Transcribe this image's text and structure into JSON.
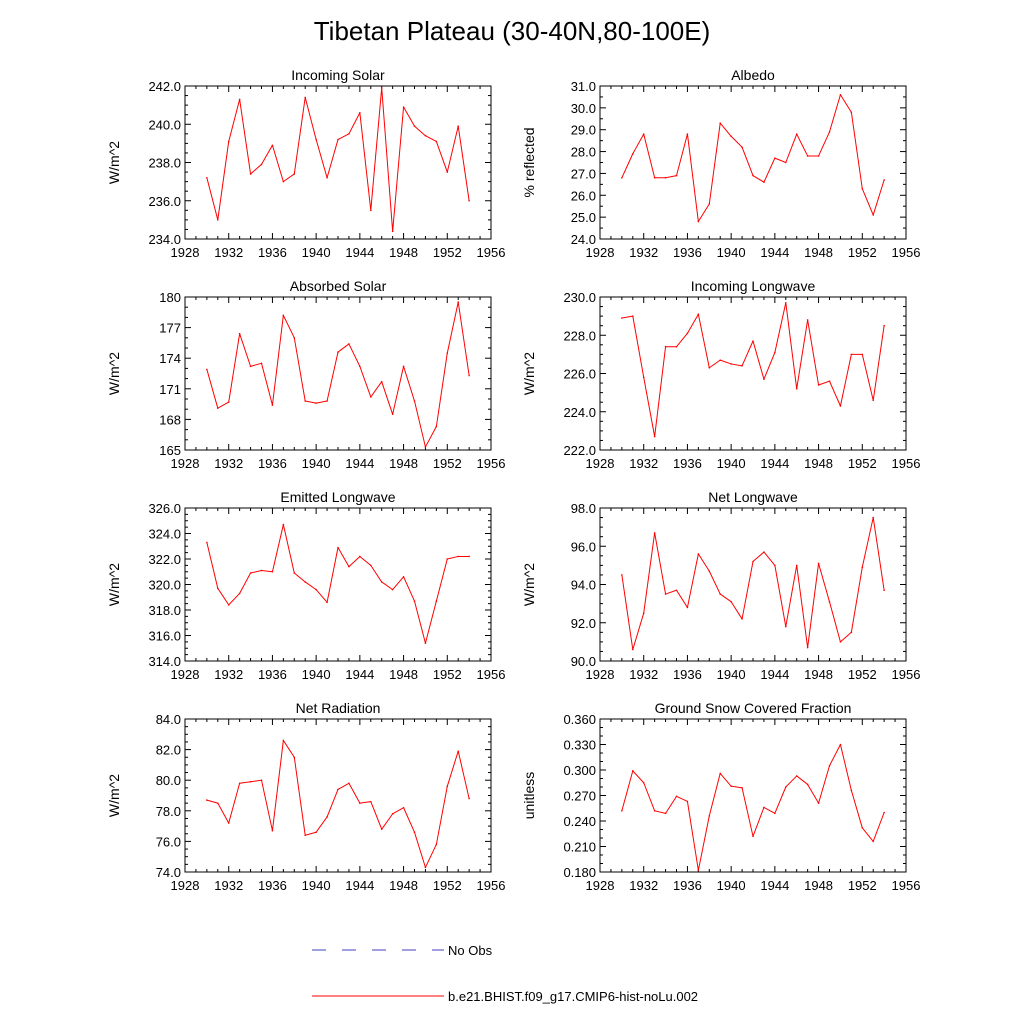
{
  "figure_title": "Tibetan Plateau (30-40N,80-100E)",
  "colors": {
    "model_line": "#ff0000",
    "obs_line": "#4040c0",
    "axis": "#000000"
  },
  "legend": {
    "obs_label": "No Obs",
    "model_label": "b.e21.BHIST.f09_g17.CMIP6-hist-noLu.002"
  },
  "chart_data": [
    {
      "type": "line",
      "title": "Incoming Solar",
      "xlabel": "",
      "ylabel": "W/m^2",
      "xlim": [
        1928,
        1956
      ],
      "xticks": [
        1928,
        1932,
        1936,
        1940,
        1944,
        1948,
        1952,
        1956
      ],
      "ylim": [
        234,
        242
      ],
      "yticks": [
        234,
        236,
        238,
        240,
        242
      ],
      "ydecimals": 1,
      "yminor": 4,
      "series": [
        {
          "x": [
            1930,
            1931,
            1932,
            1933,
            1934,
            1935,
            1936,
            1937,
            1938,
            1939,
            1940,
            1941,
            1942,
            1943,
            1944,
            1945,
            1946,
            1947,
            1948,
            1949,
            1950,
            1951,
            1952,
            1953,
            1954
          ],
          "y": [
            237.2,
            235.0,
            239.1,
            241.3,
            237.4,
            237.9,
            238.9,
            237.0,
            237.4,
            241.4,
            239.2,
            237.2,
            239.2,
            239.5,
            240.6,
            235.5,
            241.9,
            234.4,
            240.9,
            239.9,
            239.4,
            239.1,
            237.5,
            239.9,
            236.0
          ]
        }
      ]
    },
    {
      "type": "line",
      "title": "Albedo",
      "xlabel": "",
      "ylabel": "% reflected",
      "xlim": [
        1928,
        1956
      ],
      "xticks": [
        1928,
        1932,
        1936,
        1940,
        1944,
        1948,
        1952,
        1956
      ],
      "ylim": [
        24,
        31
      ],
      "yticks": [
        24,
        25,
        26,
        27,
        28,
        29,
        30,
        31
      ],
      "ydecimals": 1,
      "yminor": 2,
      "series": [
        {
          "x": [
            1930,
            1931,
            1932,
            1933,
            1934,
            1935,
            1936,
            1937,
            1938,
            1939,
            1940,
            1941,
            1942,
            1943,
            1944,
            1945,
            1946,
            1947,
            1948,
            1949,
            1950,
            1951,
            1952,
            1953,
            1954
          ],
          "y": [
            26.8,
            27.9,
            28.8,
            26.8,
            26.8,
            26.9,
            28.8,
            24.8,
            25.6,
            29.3,
            28.7,
            28.2,
            26.9,
            26.6,
            27.7,
            27.5,
            28.8,
            27.8,
            27.8,
            28.9,
            30.6,
            29.8,
            26.3,
            25.1,
            26.7
          ]
        }
      ]
    },
    {
      "type": "line",
      "title": "Absorbed Solar",
      "xlabel": "",
      "ylabel": "W/m^2",
      "xlim": [
        1928,
        1956
      ],
      "xticks": [
        1928,
        1932,
        1936,
        1940,
        1944,
        1948,
        1952,
        1956
      ],
      "ylim": [
        165,
        180
      ],
      "yticks": [
        165,
        168,
        171,
        174,
        177,
        180
      ],
      "ydecimals": 0,
      "yminor": 3,
      "series": [
        {
          "x": [
            1930,
            1931,
            1932,
            1933,
            1934,
            1935,
            1936,
            1937,
            1938,
            1939,
            1940,
            1941,
            1942,
            1943,
            1944,
            1945,
            1946,
            1947,
            1948,
            1949,
            1950,
            1951,
            1952,
            1953,
            1954
          ],
          "y": [
            172.9,
            169.1,
            169.7,
            176.4,
            173.2,
            173.5,
            169.4,
            178.2,
            176.0,
            169.8,
            169.6,
            169.8,
            174.6,
            175.4,
            173.2,
            170.2,
            171.7,
            168.5,
            173.2,
            169.8,
            165.3,
            167.3,
            174.5,
            179.5,
            172.3
          ]
        }
      ]
    },
    {
      "type": "line",
      "title": "Incoming Longwave",
      "xlabel": "",
      "ylabel": "W/m^2",
      "xlim": [
        1928,
        1956
      ],
      "xticks": [
        1928,
        1932,
        1936,
        1940,
        1944,
        1948,
        1952,
        1956
      ],
      "ylim": [
        222,
        230
      ],
      "yticks": [
        222,
        224,
        226,
        228,
        230
      ],
      "ydecimals": 1,
      "yminor": 4,
      "series": [
        {
          "x": [
            1930,
            1931,
            1932,
            1933,
            1934,
            1935,
            1936,
            1937,
            1938,
            1939,
            1940,
            1941,
            1942,
            1943,
            1944,
            1945,
            1946,
            1947,
            1948,
            1949,
            1950,
            1951,
            1952,
            1953,
            1954
          ],
          "y": [
            228.9,
            229.0,
            225.8,
            222.7,
            227.4,
            227.4,
            228.1,
            229.1,
            226.3,
            226.7,
            226.5,
            226.4,
            227.7,
            225.7,
            227.1,
            229.7,
            225.2,
            228.8,
            225.4,
            225.6,
            224.3,
            227.0,
            227.0,
            224.6,
            228.5
          ]
        }
      ]
    },
    {
      "type": "line",
      "title": "Emitted Longwave",
      "xlabel": "",
      "ylabel": "W/m^2",
      "xlim": [
        1928,
        1956
      ],
      "xticks": [
        1928,
        1932,
        1936,
        1940,
        1944,
        1948,
        1952,
        1956
      ],
      "ylim": [
        314,
        326
      ],
      "yticks": [
        314,
        316,
        318,
        320,
        322,
        324,
        326
      ],
      "ydecimals": 1,
      "yminor": 4,
      "series": [
        {
          "x": [
            1930,
            1931,
            1932,
            1933,
            1934,
            1935,
            1936,
            1937,
            1938,
            1939,
            1940,
            1941,
            1942,
            1943,
            1944,
            1945,
            1946,
            1947,
            1948,
            1949,
            1950,
            1951,
            1952,
            1953,
            1954
          ],
          "y": [
            323.3,
            319.7,
            318.4,
            319.3,
            320.9,
            321.1,
            321.0,
            324.7,
            320.9,
            320.2,
            319.6,
            318.6,
            322.9,
            321.4,
            322.2,
            321.5,
            320.2,
            319.6,
            320.6,
            318.7,
            315.4,
            318.7,
            322.0,
            322.2,
            322.2
          ]
        }
      ]
    },
    {
      "type": "line",
      "title": "Net Longwave",
      "xlabel": "",
      "ylabel": "W/m^2",
      "xlim": [
        1928,
        1956
      ],
      "xticks": [
        1928,
        1932,
        1936,
        1940,
        1944,
        1948,
        1952,
        1956
      ],
      "ylim": [
        90,
        98
      ],
      "yticks": [
        90,
        92,
        94,
        96,
        98
      ],
      "ydecimals": 1,
      "yminor": 4,
      "series": [
        {
          "x": [
            1930,
            1931,
            1932,
            1933,
            1934,
            1935,
            1936,
            1937,
            1938,
            1939,
            1940,
            1941,
            1942,
            1943,
            1944,
            1945,
            1946,
            1947,
            1948,
            1949,
            1950,
            1951,
            1952,
            1953,
            1954
          ],
          "y": [
            94.5,
            90.6,
            92.5,
            96.7,
            93.5,
            93.7,
            92.8,
            95.6,
            94.7,
            93.5,
            93.1,
            92.2,
            95.2,
            95.7,
            95.0,
            91.8,
            95.0,
            90.7,
            95.1,
            93.1,
            91.0,
            91.5,
            94.9,
            97.5,
            93.7
          ]
        }
      ]
    },
    {
      "type": "line",
      "title": "Net Radiation",
      "xlabel": "",
      "ylabel": "W/m^2",
      "xlim": [
        1928,
        1956
      ],
      "xticks": [
        1928,
        1932,
        1936,
        1940,
        1944,
        1948,
        1952,
        1956
      ],
      "ylim": [
        74,
        84
      ],
      "yticks": [
        74,
        76,
        78,
        80,
        82,
        84
      ],
      "ydecimals": 1,
      "yminor": 4,
      "series": [
        {
          "x": [
            1930,
            1931,
            1932,
            1933,
            1934,
            1935,
            1936,
            1937,
            1938,
            1939,
            1940,
            1941,
            1942,
            1943,
            1944,
            1945,
            1946,
            1947,
            1948,
            1949,
            1950,
            1951,
            1952,
            1953,
            1954
          ],
          "y": [
            78.7,
            78.5,
            77.2,
            79.8,
            79.9,
            80.0,
            76.7,
            82.6,
            81.5,
            76.4,
            76.6,
            77.6,
            79.4,
            79.8,
            78.5,
            78.6,
            76.8,
            77.8,
            78.2,
            76.6,
            74.3,
            75.8,
            79.6,
            81.9,
            78.8
          ]
        }
      ]
    },
    {
      "type": "line",
      "title": "Ground Snow Covered Fraction",
      "xlabel": "",
      "ylabel": "unitless",
      "xlim": [
        1928,
        1956
      ],
      "xticks": [
        1928,
        1932,
        1936,
        1940,
        1944,
        1948,
        1952,
        1956
      ],
      "ylim": [
        0.18,
        0.36
      ],
      "yticks": [
        0.18,
        0.21,
        0.24,
        0.27,
        0.3,
        0.33,
        0.36
      ],
      "ydecimals": 3,
      "yminor": 3,
      "series": [
        {
          "x": [
            1930,
            1931,
            1932,
            1933,
            1934,
            1935,
            1936,
            1937,
            1938,
            1939,
            1940,
            1941,
            1942,
            1943,
            1944,
            1945,
            1946,
            1947,
            1948,
            1949,
            1950,
            1951,
            1952,
            1953,
            1954
          ],
          "y": [
            0.252,
            0.299,
            0.285,
            0.252,
            0.249,
            0.269,
            0.263,
            0.182,
            0.246,
            0.296,
            0.281,
            0.279,
            0.222,
            0.256,
            0.249,
            0.28,
            0.293,
            0.283,
            0.261,
            0.305,
            0.33,
            0.276,
            0.232,
            0.216,
            0.25
          ]
        }
      ]
    }
  ]
}
